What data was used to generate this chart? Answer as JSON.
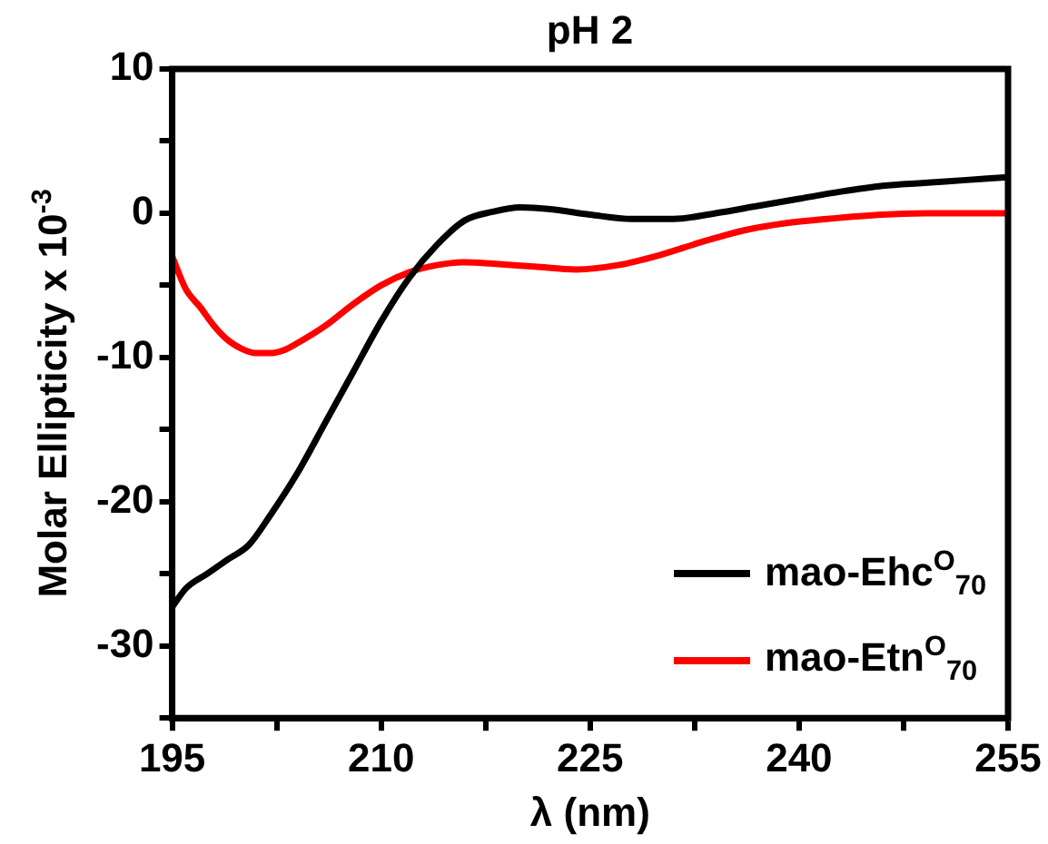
{
  "chart_data": {
    "type": "line",
    "title": "pH 2",
    "xlabel": "λ (nm)",
    "ylabel": "Molar Ellipticity x 10$^{-3}$",
    "xlim": [
      195,
      255
    ],
    "xticks": [
      195,
      {
        "value": 202.5,
        "label": null
      },
      210,
      {
        "value": 217.5,
        "label": null
      },
      225,
      {
        "value": 232.5,
        "label": null
      },
      240,
      {
        "value": 247.5,
        "label": null
      },
      255
    ],
    "ylim": [
      -35,
      10
    ],
    "yticks": [
      {
        "value": -35,
        "label": null
      },
      -30,
      {
        "value": -25,
        "label": null
      },
      -20,
      {
        "value": -15,
        "label": null
      },
      -10,
      {
        "value": -5,
        "label": null
      },
      0,
      {
        "value": 5,
        "label": null
      },
      10
    ],
    "grid": false,
    "legend": "bottom right",
    "marker": "none",
    "line_style": "solid",
    "series": [
      {
        "name": "mao-Ehc$^{O}$$_{70}$",
        "color": "#000000",
        "x": [
          195,
          196,
          197.5,
          199,
          200.5,
          202,
          204,
          206,
          208,
          210,
          212,
          214,
          216,
          218,
          220,
          222,
          225,
          228,
          231,
          234,
          237,
          240,
          243,
          246,
          249,
          252,
          255
        ],
        "values": [
          -27.3,
          -26,
          -25,
          -24,
          -23,
          -21,
          -18,
          -14.5,
          -11,
          -7.5,
          -4.5,
          -2.2,
          -0.5,
          0.1,
          0.4,
          0.3,
          -0.1,
          -0.4,
          -0.4,
          0,
          0.5,
          1,
          1.5,
          1.9,
          2.1,
          2.3,
          2.5
        ]
      },
      {
        "name": "mao-Etn$^{O}$$_{70}$",
        "color": "#ff0000",
        "x": [
          195,
          196,
          197,
          198,
          199,
          200,
          201,
          202,
          203,
          204,
          206,
          208,
          210,
          212,
          214,
          216,
          218,
          221,
          224,
          227,
          230,
          233,
          236,
          239,
          242,
          246,
          250,
          255
        ],
        "values": [
          -3,
          -5.3,
          -6.5,
          -7.8,
          -8.8,
          -9.4,
          -9.7,
          -9.7,
          -9.5,
          -9,
          -7.8,
          -6.3,
          -5,
          -4.1,
          -3.6,
          -3.4,
          -3.5,
          -3.7,
          -3.9,
          -3.6,
          -2.9,
          -2,
          -1.2,
          -0.7,
          -0.4,
          -0.1,
          0,
          0
        ]
      }
    ]
  }
}
